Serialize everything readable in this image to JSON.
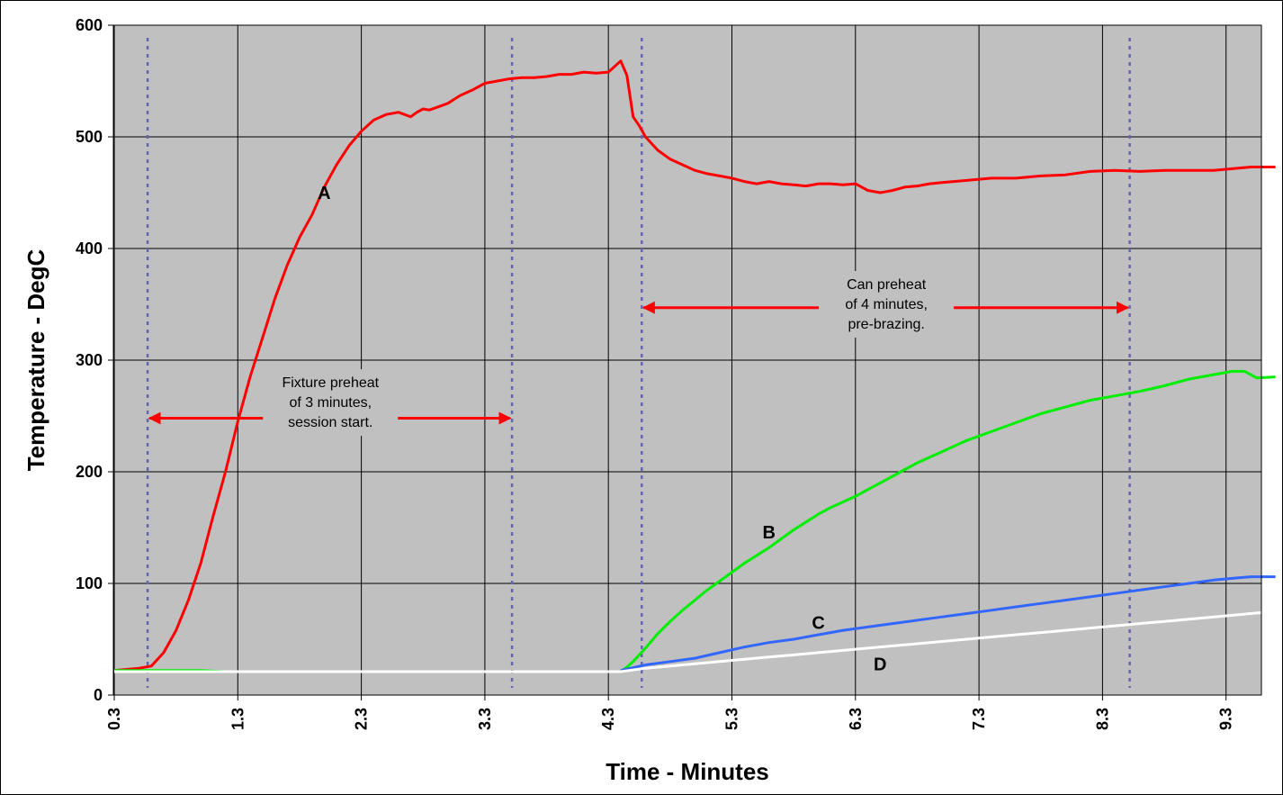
{
  "chart_data": {
    "type": "line",
    "xlabel": "Time - Minutes",
    "ylabel": "Temperature - DegC",
    "xlim": [
      0.3,
      9.7
    ],
    "ylim": [
      0,
      600
    ],
    "x_ticks": [
      0.3,
      1.3,
      2.3,
      3.3,
      4.3,
      5.3,
      6.3,
      7.3,
      8.3,
      9.3
    ],
    "x_tick_labels": [
      "0.3",
      "1.3",
      "2.3",
      "3.3",
      "4.3",
      "5.3",
      "6.3",
      "7.3",
      "8.3",
      "9.3"
    ],
    "y_ticks": [
      0,
      100,
      200,
      300,
      400,
      500,
      600
    ],
    "y_tick_labels": [
      "0",
      "100",
      "200",
      "300",
      "400",
      "500",
      "600"
    ],
    "grid": true,
    "background_color": "#c0c0c0",
    "series": [
      {
        "name": "A",
        "color": "#ff0000",
        "x": [
          0.3,
          0.5,
          0.6,
          0.7,
          0.8,
          0.9,
          1.0,
          1.1,
          1.2,
          1.3,
          1.4,
          1.5,
          1.6,
          1.7,
          1.8,
          1.9,
          2.0,
          2.1,
          2.2,
          2.3,
          2.4,
          2.5,
          2.6,
          2.7,
          2.75,
          2.8,
          2.85,
          2.9,
          3.0,
          3.1,
          3.2,
          3.3,
          3.4,
          3.5,
          3.6,
          3.7,
          3.8,
          3.9,
          4.0,
          4.1,
          4.2,
          4.3,
          4.4,
          4.45,
          4.5,
          4.55,
          4.6,
          4.7,
          4.8,
          4.9,
          5.0,
          5.1,
          5.2,
          5.3,
          5.4,
          5.5,
          5.6,
          5.7,
          5.8,
          5.9,
          6.0,
          6.1,
          6.2,
          6.3,
          6.4,
          6.5,
          6.55,
          6.6,
          6.7,
          6.8,
          6.9,
          7.0,
          7.2,
          7.4,
          7.6,
          7.8,
          8.0,
          8.2,
          8.4,
          8.6,
          8.8,
          9.0,
          9.2,
          9.4,
          9.5,
          9.7
        ],
        "y": [
          22,
          24,
          26,
          38,
          58,
          85,
          118,
          160,
          200,
          245,
          285,
          320,
          355,
          385,
          410,
          430,
          455,
          475,
          492,
          505,
          515,
          520,
          522,
          518,
          522,
          525,
          524,
          526,
          530,
          537,
          542,
          548,
          550,
          552,
          553,
          553,
          554,
          556,
          556,
          558,
          557,
          558,
          568,
          555,
          518,
          510,
          500,
          488,
          480,
          475,
          470,
          467,
          465,
          463,
          460,
          458,
          460,
          458,
          457,
          456,
          458,
          458,
          457,
          458,
          452,
          450,
          451,
          452,
          455,
          456,
          458,
          459,
          461,
          463,
          463,
          465,
          466,
          469,
          470,
          469,
          470,
          470,
          470,
          472,
          473,
          473
        ]
      },
      {
        "name": "B",
        "color": "#00ee00",
        "x": [
          0.3,
          1.0,
          1.2,
          4.4,
          4.45,
          4.5,
          4.6,
          4.7,
          4.8,
          4.9,
          5.0,
          5.1,
          5.2,
          5.3,
          5.4,
          5.5,
          5.6,
          5.7,
          5.8,
          5.9,
          6.0,
          6.1,
          6.2,
          6.3,
          6.4,
          6.5,
          6.6,
          6.7,
          6.8,
          6.9,
          7.0,
          7.2,
          7.4,
          7.6,
          7.8,
          8.0,
          8.2,
          8.4,
          8.6,
          8.8,
          9.0,
          9.2,
          9.35,
          9.45,
          9.55,
          9.7
        ],
        "y": [
          22,
          22,
          21,
          21,
          25,
          30,
          42,
          55,
          66,
          76,
          85,
          94,
          102,
          110,
          118,
          125,
          132,
          140,
          148,
          155,
          162,
          168,
          173,
          178,
          184,
          190,
          196,
          202,
          208,
          213,
          218,
          228,
          236,
          244,
          252,
          258,
          264,
          268,
          272,
          277,
          283,
          287,
          290,
          290,
          284,
          285
        ]
      },
      {
        "name": "C",
        "color": "#3366ff",
        "x": [
          4.4,
          4.6,
          4.8,
          5.0,
          5.2,
          5.4,
          5.6,
          5.8,
          6.0,
          6.2,
          6.4,
          6.6,
          6.8,
          7.0,
          7.2,
          7.4,
          7.6,
          7.8,
          8.0,
          8.2,
          8.4,
          8.6,
          8.8,
          9.0,
          9.2,
          9.4,
          9.5,
          9.7
        ],
        "y": [
          22,
          27,
          30,
          33,
          38,
          43,
          47,
          50,
          54,
          58,
          61,
          64,
          67,
          70,
          73,
          76,
          79,
          82,
          85,
          88,
          91,
          94,
          97,
          100,
          103,
          105,
          106,
          106
        ]
      },
      {
        "name": "D",
        "color": "#ffffff",
        "x": [
          0.3,
          4.4,
          4.6,
          4.8,
          5.0,
          5.2,
          5.4,
          5.6,
          5.8,
          6.0,
          6.2,
          6.4,
          6.6,
          6.8,
          7.0,
          7.2,
          7.4,
          7.6,
          7.8,
          8.0,
          8.2,
          8.4,
          8.6,
          8.8,
          9.0,
          9.2,
          9.4,
          9.6,
          9.7
        ],
        "y": [
          21,
          21,
          24,
          26,
          28,
          30,
          32,
          34,
          36,
          38,
          40,
          42,
          44,
          46,
          48,
          50,
          52,
          54,
          56,
          58,
          60,
          62,
          64,
          66,
          68,
          70,
          72,
          74,
          76
        ]
      }
    ],
    "series_labels": [
      {
        "text": "A",
        "x": 2.0,
        "y": 450
      },
      {
        "text": "B",
        "x": 5.6,
        "y": 146
      },
      {
        "text": "C",
        "x": 6.0,
        "y": 65
      },
      {
        "text": "D",
        "x": 6.5,
        "y": 28
      }
    ],
    "vlines": [
      0.57,
      3.52,
      4.57,
      8.52
    ],
    "annotations": [
      {
        "lines": [
          "Fixture preheat",
          "of 3 minutes,",
          "session start."
        ],
        "arrow_from": 0.57,
        "arrow_to": 3.52,
        "arrow_y": 248,
        "text_x": 2.05,
        "text_y": 262
      },
      {
        "lines": [
          "Can preheat",
          "of 4 minutes,",
          "pre-brazing."
        ],
        "arrow_from": 4.57,
        "arrow_to": 8.52,
        "arrow_y": 347,
        "text_x": 6.55,
        "text_y": 350
      }
    ]
  }
}
